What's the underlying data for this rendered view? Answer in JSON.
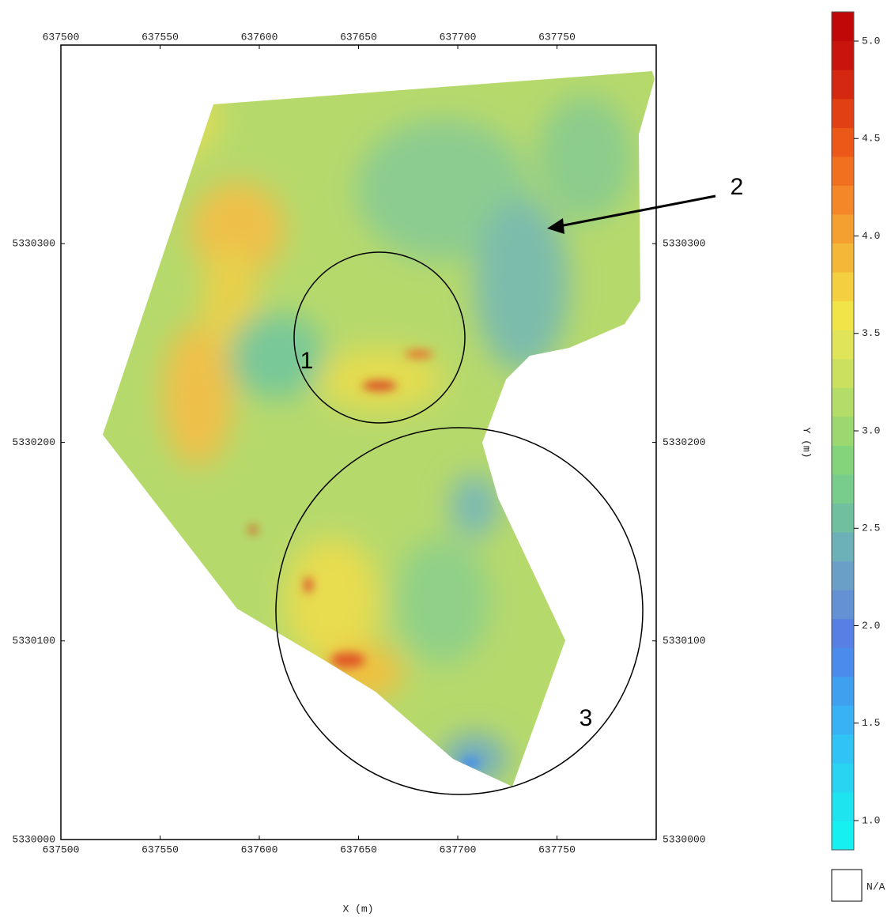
{
  "chart_data": {
    "type": "map",
    "xlabel": "X (m)",
    "xlim": [
      637500,
      637800
    ],
    "xticks": [
      637500,
      637550,
      637600,
      637650,
      637700,
      637750
    ],
    "ylim": [
      5330000,
      5330400
    ],
    "yticks": [
      5330000,
      5330100,
      5330200,
      5330300
    ],
    "colorbar": {
      "label": "Y (m)",
      "lim": [
        0.85,
        5.15
      ],
      "ticks": [
        {
          "value": 1,
          "label": "1.0"
        },
        {
          "value": 1.5,
          "label": "1.5"
        },
        {
          "value": 2,
          "label": "2.0"
        },
        {
          "value": 2.5,
          "label": "2.5"
        },
        {
          "value": 3,
          "label": "3.0"
        },
        {
          "value": 3.5,
          "label": "3.5"
        },
        {
          "value": 4,
          "label": "4.0"
        },
        {
          "value": 4.5,
          "label": "4.5"
        },
        {
          "value": 5,
          "label": "5.0"
        }
      ],
      "colors": [
        "#16f0f0",
        "#1ee4f0",
        "#28d4f2",
        "#30c4f4",
        "#38b2f4",
        "#40a0f0",
        "#4a8cec",
        "#5880e4",
        "#6490d4",
        "#6aa0c8",
        "#6cb0b8",
        "#70c0a0",
        "#78cc8c",
        "#84d47c",
        "#9cd870",
        "#b4dc68",
        "#cce060",
        "#e0e458",
        "#f0e448",
        "#f4d040",
        "#f4b838",
        "#f4a030",
        "#f48828",
        "#f07020",
        "#ec5818",
        "#e04014",
        "#d42810",
        "#c8140c",
        "#c00808"
      ],
      "na_label": "N/A"
    },
    "annotations": [
      "1",
      "2",
      "3"
    ]
  }
}
